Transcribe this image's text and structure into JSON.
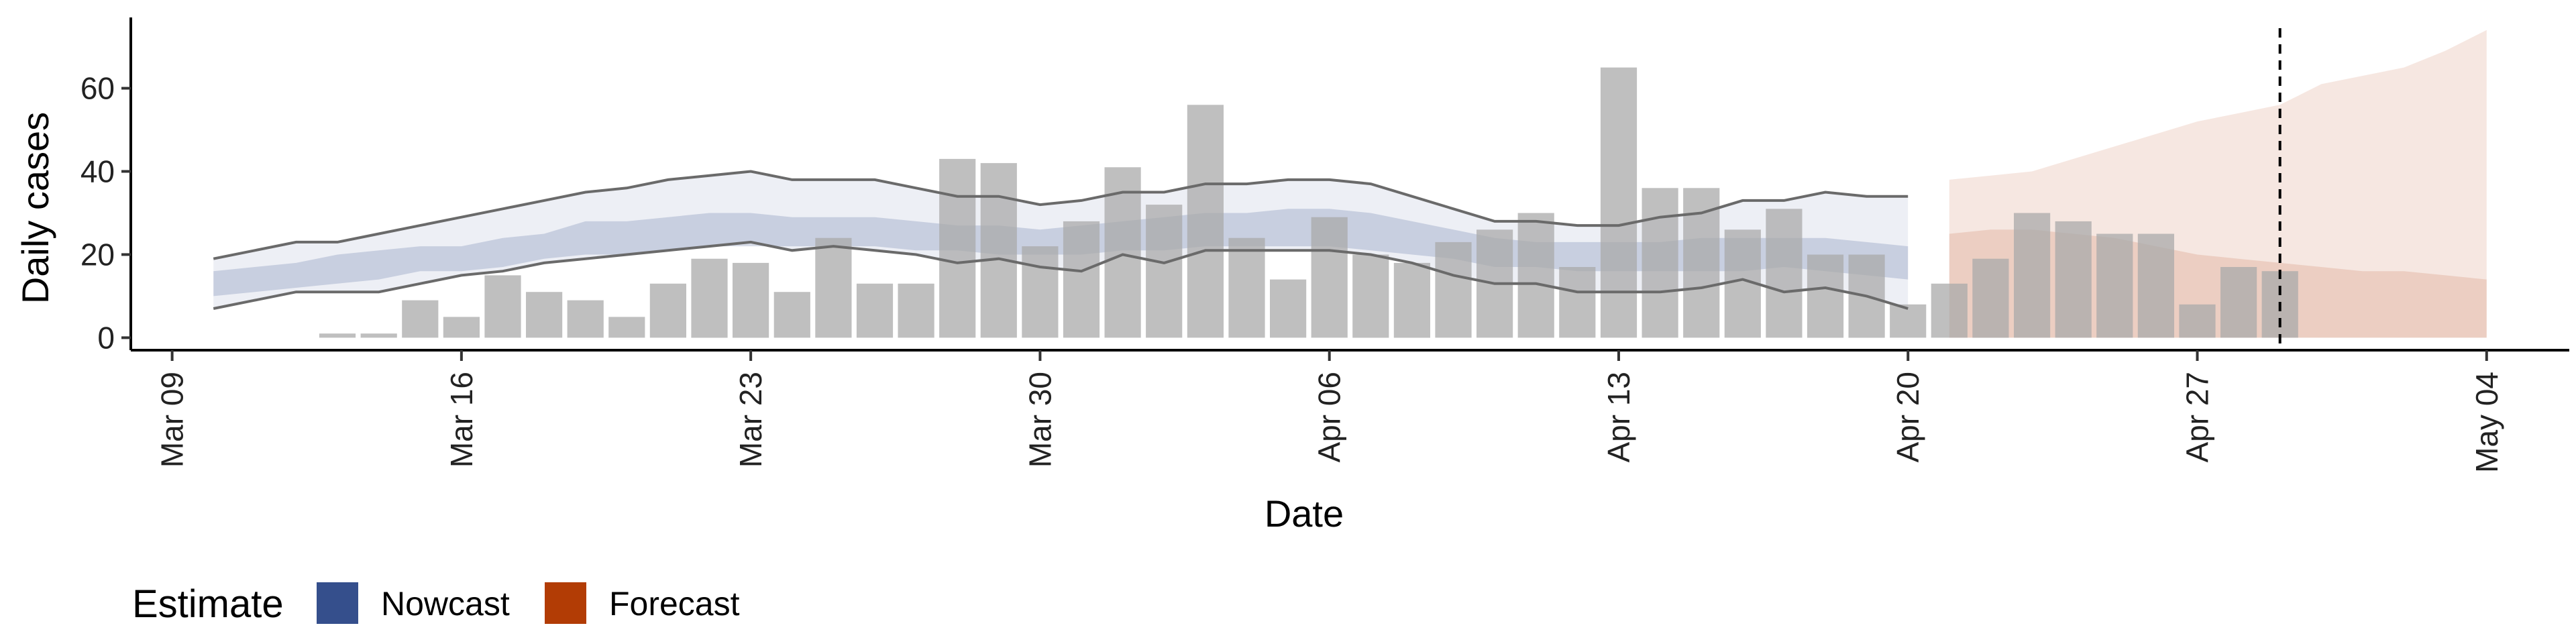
{
  "chart_data": {
    "type": "bar",
    "xlabel": "Date",
    "ylabel": "Daily cases",
    "ylim": [
      -3,
      78
    ],
    "yticks": [
      0,
      20,
      40,
      60
    ],
    "xticks": [
      {
        "date": "2020-03-09",
        "label": "Mar 09"
      },
      {
        "date": "2020-03-16",
        "label": "Mar 16"
      },
      {
        "date": "2020-03-23",
        "label": "Mar 23"
      },
      {
        "date": "2020-03-30",
        "label": "Mar 30"
      },
      {
        "date": "2020-04-06",
        "label": "Apr 06"
      },
      {
        "date": "2020-04-13",
        "label": "Apr 13"
      },
      {
        "date": "2020-04-20",
        "label": "Apr 20"
      },
      {
        "date": "2020-04-27",
        "label": "Apr 27"
      },
      {
        "date": "2020-05-04",
        "label": "May 04"
      }
    ],
    "xlim": [
      "2020-03-08",
      "2020-05-06"
    ],
    "vline_date": "2020-04-29",
    "bars": {
      "color": "#a9a9a9",
      "dates": [
        "2020-03-13",
        "2020-03-14",
        "2020-03-15",
        "2020-03-16",
        "2020-03-17",
        "2020-03-18",
        "2020-03-19",
        "2020-03-20",
        "2020-03-21",
        "2020-03-22",
        "2020-03-23",
        "2020-03-24",
        "2020-03-25",
        "2020-03-26",
        "2020-03-27",
        "2020-03-28",
        "2020-03-29",
        "2020-03-30",
        "2020-03-31",
        "2020-04-01",
        "2020-04-02",
        "2020-04-03",
        "2020-04-04",
        "2020-04-05",
        "2020-04-06",
        "2020-04-07",
        "2020-04-08",
        "2020-04-09",
        "2020-04-10",
        "2020-04-11",
        "2020-04-12",
        "2020-04-13",
        "2020-04-14",
        "2020-04-15",
        "2020-04-16",
        "2020-04-17",
        "2020-04-18",
        "2020-04-19",
        "2020-04-20",
        "2020-04-21",
        "2020-04-22",
        "2020-04-23",
        "2020-04-24",
        "2020-04-25",
        "2020-04-26",
        "2020-04-27",
        "2020-04-28",
        "2020-04-29"
      ],
      "values": [
        1,
        1,
        9,
        5,
        15,
        11,
        9,
        5,
        13,
        19,
        18,
        11,
        24,
        13,
        13,
        43,
        42,
        22,
        28,
        41,
        32,
        56,
        24,
        14,
        29,
        20,
        18,
        23,
        26,
        30,
        17,
        65,
        36,
        36,
        26,
        31,
        20,
        20,
        8,
        13,
        19,
        30,
        28,
        25,
        25,
        8,
        17,
        16
      ]
    },
    "series": [
      {
        "name": "Nowcast",
        "color": "#354f8c",
        "dates": [
          "2020-03-10",
          "2020-03-11",
          "2020-03-12",
          "2020-03-13",
          "2020-03-14",
          "2020-03-15",
          "2020-03-16",
          "2020-03-17",
          "2020-03-18",
          "2020-03-19",
          "2020-03-20",
          "2020-03-21",
          "2020-03-22",
          "2020-03-23",
          "2020-03-24",
          "2020-03-25",
          "2020-03-26",
          "2020-03-27",
          "2020-03-28",
          "2020-03-29",
          "2020-03-30",
          "2020-03-31",
          "2020-04-01",
          "2020-04-02",
          "2020-04-03",
          "2020-04-04",
          "2020-04-05",
          "2020-04-06",
          "2020-04-07",
          "2020-04-08",
          "2020-04-09",
          "2020-04-10",
          "2020-04-11",
          "2020-04-12",
          "2020-04-13",
          "2020-04-14",
          "2020-04-15",
          "2020-04-16",
          "2020-04-17",
          "2020-04-18",
          "2020-04-19",
          "2020-04-20"
        ],
        "upper90": [
          19,
          21,
          23,
          23,
          25,
          27,
          29,
          31,
          33,
          35,
          36,
          38,
          39,
          40,
          38,
          38,
          38,
          36,
          34,
          34,
          32,
          33,
          35,
          35,
          37,
          37,
          38,
          38,
          37,
          34,
          31,
          28,
          28,
          27,
          27,
          29,
          30,
          33,
          33,
          35,
          34,
          34
        ],
        "lower90": [
          7,
          9,
          11,
          11,
          11,
          13,
          15,
          16,
          18,
          19,
          20,
          21,
          22,
          23,
          21,
          22,
          21,
          20,
          18,
          19,
          17,
          16,
          20,
          18,
          21,
          21,
          21,
          21,
          20,
          18,
          15,
          13,
          13,
          11,
          11,
          11,
          12,
          14,
          11,
          12,
          10,
          7
        ],
        "upper50": [
          16,
          17,
          18,
          20,
          21,
          22,
          22,
          24,
          25,
          28,
          28,
          29,
          30,
          30,
          29,
          29,
          29,
          28,
          27,
          27,
          26,
          27,
          28,
          29,
          30,
          30,
          31,
          31,
          30,
          28,
          26,
          24,
          23,
          23,
          23,
          23,
          24,
          24,
          24,
          24,
          23,
          22
        ],
        "lower50": [
          10,
          11,
          12,
          13,
          14,
          16,
          16,
          17,
          19,
          20,
          20,
          21,
          22,
          22,
          22,
          22,
          22,
          21,
          21,
          20,
          20,
          20,
          21,
          21,
          22,
          22,
          22,
          22,
          21,
          20,
          19,
          17,
          17,
          16,
          16,
          16,
          16,
          16,
          17,
          16,
          15,
          14
        ]
      },
      {
        "name": "Forecast",
        "color": "#b23c05",
        "dates": [
          "2020-04-21",
          "2020-04-22",
          "2020-04-23",
          "2020-04-24",
          "2020-04-25",
          "2020-04-26",
          "2020-04-27",
          "2020-04-28",
          "2020-04-29",
          "2020-04-30",
          "2020-05-01",
          "2020-05-02",
          "2020-05-03",
          "2020-05-04"
        ],
        "upper90": [
          38,
          39,
          40,
          43,
          46,
          49,
          52,
          54,
          56,
          61,
          63,
          65,
          69,
          74
        ],
        "lower90": [
          0,
          0,
          0,
          0,
          0,
          0,
          0,
          0,
          0,
          0,
          0,
          0,
          0,
          0
        ],
        "upper50": [
          25,
          26,
          26,
          25,
          24,
          22,
          20,
          19,
          18,
          17,
          16,
          16,
          15,
          14
        ],
        "lower50": [
          0,
          0,
          0,
          0,
          0,
          0,
          0,
          0,
          0,
          0,
          0,
          0,
          0,
          0
        ]
      }
    ],
    "legend": {
      "title": "Estimate",
      "position": "bottom-left",
      "items": [
        {
          "label": "Nowcast",
          "color": "#354f8c"
        },
        {
          "label": "Forecast",
          "color": "#b23c05"
        }
      ]
    },
    "grid": false
  }
}
